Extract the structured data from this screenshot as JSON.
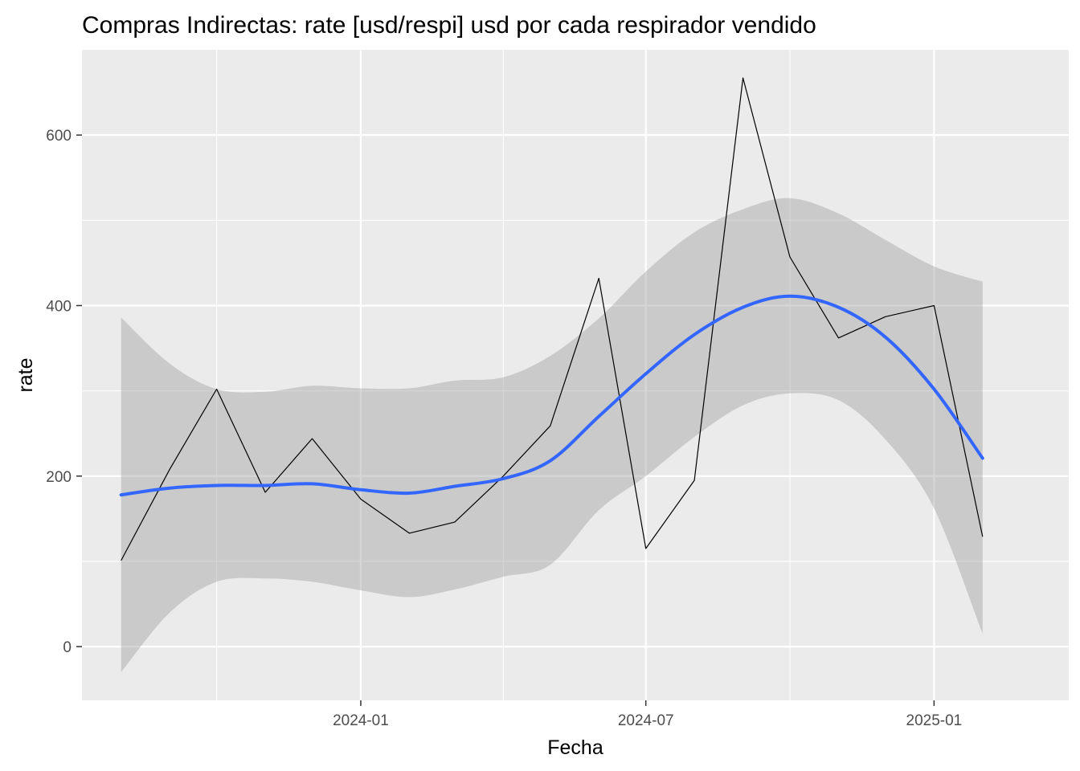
{
  "chart_data": {
    "type": "line",
    "title": "Compras Indirectas: rate [usd/respi] usd por cada respirador vendido",
    "xlabel": "Fecha",
    "ylabel": "rate",
    "x_ticks": [
      {
        "date": "2024-01-01",
        "label": "2024-01"
      },
      {
        "date": "2024-07-01",
        "label": "2024-07"
      },
      {
        "date": "2025-01-01",
        "label": "2025-01"
      }
    ],
    "x_minor_ticks": [
      "2023-10-01",
      "2024-04-01",
      "2024-10-01"
    ],
    "y_ticks": [
      0,
      200,
      400,
      600
    ],
    "y_minor_ticks": [
      100,
      300,
      500
    ],
    "xlim": [
      "2023-07-07",
      "2025-03-28"
    ],
    "ylim": [
      -63,
      700
    ],
    "grid": true,
    "series": [
      {
        "type": "line",
        "color": "#000000",
        "points": [
          {
            "x": "2023-08-01",
            "y": 101
          },
          {
            "x": "2023-09-01",
            "y": 208
          },
          {
            "x": "2023-10-01",
            "y": 302
          },
          {
            "x": "2023-11-01",
            "y": 181
          },
          {
            "x": "2023-12-01",
            "y": 244
          },
          {
            "x": "2024-01-01",
            "y": 173
          },
          {
            "x": "2024-02-01",
            "y": 133
          },
          {
            "x": "2024-03-01",
            "y": 146
          },
          {
            "x": "2024-04-01",
            "y": 200
          },
          {
            "x": "2024-05-01",
            "y": 259
          },
          {
            "x": "2024-06-01",
            "y": 432
          },
          {
            "x": "2024-07-01",
            "y": 115
          },
          {
            "x": "2024-08-01",
            "y": 195
          },
          {
            "x": "2024-09-01",
            "y": 667
          },
          {
            "x": "2024-10-01",
            "y": 457
          },
          {
            "x": "2024-11-01",
            "y": 362
          },
          {
            "x": "2024-12-01",
            "y": 387
          },
          {
            "x": "2025-01-01",
            "y": 400
          },
          {
            "x": "2025-02-01",
            "y": 129
          }
        ]
      },
      {
        "type": "smooth",
        "color": "#3366FF",
        "band_color": "#999999",
        "points": [
          {
            "x": "2023-08-01",
            "y": 178,
            "lower": -30,
            "upper": 386
          },
          {
            "x": "2023-09-01",
            "y": 186,
            "lower": 40,
            "upper": 332
          },
          {
            "x": "2023-10-01",
            "y": 189,
            "lower": 76,
            "upper": 302
          },
          {
            "x": "2023-11-01",
            "y": 189,
            "lower": 80,
            "upper": 299
          },
          {
            "x": "2023-12-01",
            "y": 191,
            "lower": 76,
            "upper": 306
          },
          {
            "x": "2024-01-01",
            "y": 184,
            "lower": 66,
            "upper": 303
          },
          {
            "x": "2024-02-01",
            "y": 180,
            "lower": 58,
            "upper": 303
          },
          {
            "x": "2024-03-01",
            "y": 188,
            "lower": 67,
            "upper": 312
          },
          {
            "x": "2024-04-01",
            "y": 197,
            "lower": 82,
            "upper": 316
          },
          {
            "x": "2024-05-01",
            "y": 218,
            "lower": 96,
            "upper": 341
          },
          {
            "x": "2024-06-01",
            "y": 270,
            "lower": 160,
            "upper": 385
          },
          {
            "x": "2024-07-01",
            "y": 320,
            "lower": 200,
            "upper": 440
          },
          {
            "x": "2024-08-01",
            "y": 366,
            "lower": 246,
            "upper": 486
          },
          {
            "x": "2024-09-01",
            "y": 398,
            "lower": 283,
            "upper": 513
          },
          {
            "x": "2024-10-01",
            "y": 411,
            "lower": 297,
            "upper": 526
          },
          {
            "x": "2024-11-01",
            "y": 398,
            "lower": 289,
            "upper": 508
          },
          {
            "x": "2024-12-01",
            "y": 363,
            "lower": 243,
            "upper": 477
          },
          {
            "x": "2025-01-01",
            "y": 302,
            "lower": 162,
            "upper": 446
          },
          {
            "x": "2025-02-01",
            "y": 221,
            "lower": 15,
            "upper": 428
          }
        ]
      }
    ]
  }
}
